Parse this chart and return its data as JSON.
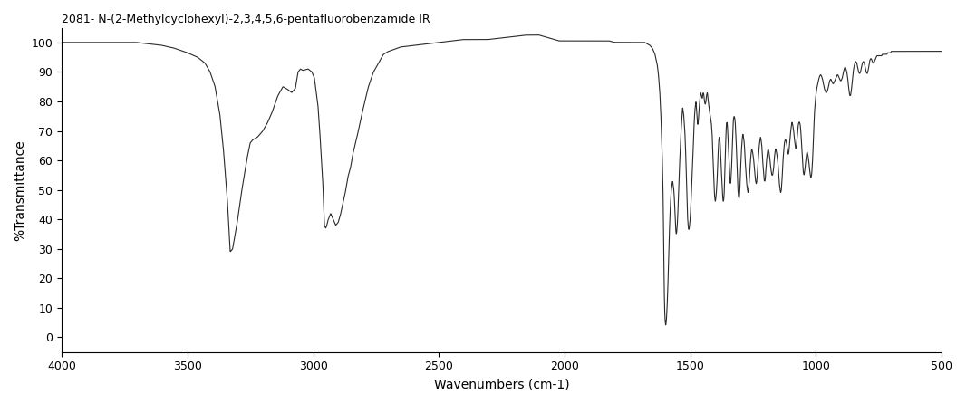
{
  "title": "2081- N-(2-Methylcyclohexyl)-2,3,4,5,6-pentafluorobenzamide IR",
  "xlabel": "Wavenumbers (cm-1)",
  "ylabel": "%Transmittance",
  "xmin": 500,
  "xmax": 4000,
  "ymin": -5,
  "ymax": 105,
  "xticks": [
    4000,
    3500,
    3000,
    2500,
    2000,
    1500,
    1000,
    500
  ],
  "yticks": [
    0,
    10,
    20,
    30,
    40,
    50,
    60,
    70,
    80,
    90,
    100
  ],
  "line_color": "#2a2a2a",
  "background_color": "#ffffff",
  "control_points": [
    [
      4000,
      100.0
    ],
    [
      3900,
      100.0
    ],
    [
      3800,
      100.0
    ],
    [
      3700,
      100.0
    ],
    [
      3650,
      99.5
    ],
    [
      3600,
      99.0
    ],
    [
      3550,
      98.0
    ],
    [
      3500,
      96.5
    ],
    [
      3460,
      95.0
    ],
    [
      3430,
      93.0
    ],
    [
      3410,
      90.0
    ],
    [
      3390,
      85.0
    ],
    [
      3370,
      75.0
    ],
    [
      3355,
      62.0
    ],
    [
      3340,
      45.0
    ],
    [
      3330,
      29.0
    ],
    [
      3320,
      30.0
    ],
    [
      3310,
      35.0
    ],
    [
      3300,
      40.0
    ],
    [
      3290,
      46.0
    ],
    [
      3280,
      52.0
    ],
    [
      3270,
      57.0
    ],
    [
      3260,
      62.0
    ],
    [
      3250,
      66.0
    ],
    [
      3240,
      67.0
    ],
    [
      3220,
      68.0
    ],
    [
      3200,
      70.0
    ],
    [
      3180,
      73.0
    ],
    [
      3160,
      77.0
    ],
    [
      3140,
      82.0
    ],
    [
      3120,
      85.0
    ],
    [
      3100,
      84.0
    ],
    [
      3085,
      83.0
    ],
    [
      3070,
      84.5
    ],
    [
      3060,
      90.0
    ],
    [
      3050,
      91.0
    ],
    [
      3040,
      90.5
    ],
    [
      3020,
      91.0
    ],
    [
      3005,
      90.0
    ],
    [
      2995,
      88.0
    ],
    [
      2980,
      78.0
    ],
    [
      2970,
      65.0
    ],
    [
      2960,
      50.0
    ],
    [
      2955,
      38.0
    ],
    [
      2950,
      37.0
    ],
    [
      2945,
      38.0
    ],
    [
      2940,
      40.0
    ],
    [
      2930,
      42.0
    ],
    [
      2920,
      40.0
    ],
    [
      2910,
      38.0
    ],
    [
      2900,
      39.0
    ],
    [
      2890,
      42.0
    ],
    [
      2880,
      46.0
    ],
    [
      2870,
      50.0
    ],
    [
      2860,
      55.0
    ],
    [
      2850,
      58.0
    ],
    [
      2840,
      63.0
    ],
    [
      2820,
      70.0
    ],
    [
      2800,
      78.0
    ],
    [
      2780,
      85.0
    ],
    [
      2760,
      90.0
    ],
    [
      2740,
      93.0
    ],
    [
      2720,
      96.0
    ],
    [
      2700,
      97.0
    ],
    [
      2650,
      98.5
    ],
    [
      2600,
      99.0
    ],
    [
      2550,
      99.5
    ],
    [
      2500,
      100.0
    ],
    [
      2450,
      100.5
    ],
    [
      2400,
      101.0
    ],
    [
      2350,
      101.0
    ],
    [
      2300,
      101.0
    ],
    [
      2250,
      101.5
    ],
    [
      2200,
      102.0
    ],
    [
      2150,
      102.5
    ],
    [
      2100,
      102.5
    ],
    [
      2080,
      102.0
    ],
    [
      2060,
      101.5
    ],
    [
      2040,
      101.0
    ],
    [
      2020,
      100.5
    ],
    [
      2000,
      100.5
    ],
    [
      1980,
      100.5
    ],
    [
      1960,
      100.5
    ],
    [
      1940,
      100.5
    ],
    [
      1920,
      100.5
    ],
    [
      1900,
      100.5
    ],
    [
      1880,
      100.5
    ],
    [
      1860,
      100.5
    ],
    [
      1840,
      100.5
    ],
    [
      1820,
      100.5
    ],
    [
      1800,
      100.0
    ],
    [
      1780,
      100.0
    ],
    [
      1760,
      100.0
    ],
    [
      1740,
      100.0
    ],
    [
      1720,
      100.0
    ],
    [
      1700,
      100.0
    ],
    [
      1690,
      100.0
    ],
    [
      1680,
      100.0
    ],
    [
      1670,
      99.5
    ],
    [
      1660,
      99.0
    ],
    [
      1650,
      98.0
    ],
    [
      1640,
      96.0
    ],
    [
      1635,
      94.0
    ],
    [
      1630,
      92.0
    ],
    [
      1625,
      88.0
    ],
    [
      1620,
      82.0
    ],
    [
      1615,
      72.0
    ],
    [
      1610,
      58.0
    ],
    [
      1607,
      45.0
    ],
    [
      1605,
      30.0
    ],
    [
      1603,
      15.0
    ],
    [
      1601,
      8.0
    ],
    [
      1599,
      5.0
    ],
    [
      1597,
      4.0
    ],
    [
      1595,
      5.5
    ],
    [
      1593,
      8.0
    ],
    [
      1590,
      14.0
    ],
    [
      1587,
      22.0
    ],
    [
      1584,
      32.0
    ],
    [
      1581,
      40.0
    ],
    [
      1578,
      46.0
    ],
    [
      1575,
      50.0
    ],
    [
      1572,
      52.0
    ],
    [
      1570,
      53.0
    ],
    [
      1568,
      52.0
    ],
    [
      1565,
      50.0
    ],
    [
      1562,
      46.0
    ],
    [
      1559,
      40.0
    ],
    [
      1557,
      36.0
    ],
    [
      1555,
      35.0
    ],
    [
      1553,
      36.0
    ],
    [
      1550,
      40.0
    ],
    [
      1545,
      52.0
    ],
    [
      1540,
      63.0
    ],
    [
      1535,
      72.0
    ],
    [
      1530,
      78.0
    ],
    [
      1525,
      75.0
    ],
    [
      1520,
      68.0
    ],
    [
      1515,
      55.0
    ],
    [
      1510,
      40.0
    ],
    [
      1507,
      37.0
    ],
    [
      1505,
      36.5
    ],
    [
      1503,
      37.5
    ],
    [
      1500,
      40.0
    ],
    [
      1497,
      45.0
    ],
    [
      1494,
      52.0
    ],
    [
      1492,
      56.0
    ],
    [
      1490,
      60.0
    ],
    [
      1488,
      64.0
    ],
    [
      1486,
      68.0
    ],
    [
      1484,
      73.0
    ],
    [
      1482,
      76.0
    ],
    [
      1480,
      78.0
    ],
    [
      1477,
      80.0
    ],
    [
      1475,
      78.0
    ],
    [
      1472,
      74.0
    ],
    [
      1470,
      72.0
    ],
    [
      1468,
      73.0
    ],
    [
      1466,
      75.0
    ],
    [
      1464,
      78.0
    ],
    [
      1462,
      80.0
    ],
    [
      1460,
      82.0
    ],
    [
      1458,
      83.0
    ],
    [
      1455,
      82.0
    ],
    [
      1452,
      81.0
    ],
    [
      1450,
      82.0
    ],
    [
      1448,
      83.0
    ],
    [
      1445,
      82.0
    ],
    [
      1443,
      80.0
    ],
    [
      1440,
      79.0
    ],
    [
      1437,
      80.0
    ],
    [
      1435,
      82.0
    ],
    [
      1432,
      83.0
    ],
    [
      1430,
      82.0
    ],
    [
      1428,
      80.0
    ],
    [
      1425,
      78.0
    ],
    [
      1422,
      76.0
    ],
    [
      1420,
      75.0
    ],
    [
      1418,
      74.0
    ],
    [
      1415,
      72.0
    ],
    [
      1412,
      68.0
    ],
    [
      1410,
      63.0
    ],
    [
      1408,
      57.0
    ],
    [
      1405,
      52.0
    ],
    [
      1403,
      48.0
    ],
    [
      1400,
      46.0
    ],
    [
      1398,
      47.0
    ],
    [
      1395,
      50.0
    ],
    [
      1392,
      55.0
    ],
    [
      1390,
      60.0
    ],
    [
      1388,
      64.0
    ],
    [
      1386,
      67.0
    ],
    [
      1384,
      68.0
    ],
    [
      1382,
      67.0
    ],
    [
      1380,
      65.0
    ],
    [
      1378,
      61.0
    ],
    [
      1375,
      55.0
    ],
    [
      1372,
      50.0
    ],
    [
      1370,
      47.0
    ],
    [
      1368,
      46.0
    ],
    [
      1366,
      47.0
    ],
    [
      1364,
      50.0
    ],
    [
      1362,
      55.0
    ],
    [
      1360,
      62.0
    ],
    [
      1358,
      68.0
    ],
    [
      1356,
      72.0
    ],
    [
      1354,
      73.0
    ],
    [
      1352,
      72.0
    ],
    [
      1350,
      69.0
    ],
    [
      1347,
      64.0
    ],
    [
      1344,
      58.0
    ],
    [
      1342,
      54.0
    ],
    [
      1340,
      52.0
    ],
    [
      1338,
      53.0
    ],
    [
      1335,
      58.0
    ],
    [
      1332,
      65.0
    ],
    [
      1330,
      70.0
    ],
    [
      1328,
      74.0
    ],
    [
      1325,
      75.0
    ],
    [
      1322,
      74.0
    ],
    [
      1320,
      72.0
    ],
    [
      1318,
      68.0
    ],
    [
      1315,
      62.0
    ],
    [
      1312,
      55.0
    ],
    [
      1310,
      50.0
    ],
    [
      1308,
      48.0
    ],
    [
      1305,
      47.0
    ],
    [
      1303,
      49.0
    ],
    [
      1300,
      55.0
    ],
    [
      1298,
      60.0
    ],
    [
      1295,
      65.0
    ],
    [
      1292,
      68.0
    ],
    [
      1290,
      69.0
    ],
    [
      1288,
      68.0
    ],
    [
      1285,
      66.0
    ],
    [
      1282,
      62.0
    ],
    [
      1280,
      58.0
    ],
    [
      1277,
      55.0
    ],
    [
      1275,
      52.0
    ],
    [
      1272,
      50.0
    ],
    [
      1270,
      49.0
    ],
    [
      1268,
      50.0
    ],
    [
      1265,
      53.0
    ],
    [
      1262,
      57.0
    ],
    [
      1260,
      60.0
    ],
    [
      1258,
      62.0
    ],
    [
      1255,
      64.0
    ],
    [
      1252,
      63.0
    ],
    [
      1250,
      62.0
    ],
    [
      1247,
      60.0
    ],
    [
      1244,
      57.0
    ],
    [
      1242,
      55.0
    ],
    [
      1240,
      53.0
    ],
    [
      1237,
      52.0
    ],
    [
      1235,
      53.0
    ],
    [
      1232,
      56.0
    ],
    [
      1230,
      59.0
    ],
    [
      1228,
      62.0
    ],
    [
      1225,
      65.0
    ],
    [
      1222,
      67.0
    ],
    [
      1220,
      68.0
    ],
    [
      1218,
      67.0
    ],
    [
      1215,
      65.0
    ],
    [
      1212,
      61.0
    ],
    [
      1210,
      58.0
    ],
    [
      1207,
      55.0
    ],
    [
      1205,
      53.0
    ],
    [
      1202,
      53.0
    ],
    [
      1200,
      55.0
    ],
    [
      1198,
      58.0
    ],
    [
      1195,
      61.0
    ],
    [
      1192,
      63.0
    ],
    [
      1190,
      64.0
    ],
    [
      1187,
      63.0
    ],
    [
      1185,
      62.0
    ],
    [
      1182,
      60.0
    ],
    [
      1180,
      58.0
    ],
    [
      1177,
      56.0
    ],
    [
      1175,
      55.0
    ],
    [
      1172,
      55.0
    ],
    [
      1170,
      56.0
    ],
    [
      1167,
      58.0
    ],
    [
      1165,
      61.0
    ],
    [
      1162,
      63.0
    ],
    [
      1160,
      64.0
    ],
    [
      1157,
      63.0
    ],
    [
      1155,
      62.0
    ],
    [
      1152,
      60.0
    ],
    [
      1150,
      58.0
    ],
    [
      1147,
      55.0
    ],
    [
      1145,
      52.0
    ],
    [
      1142,
      50.0
    ],
    [
      1140,
      49.0
    ],
    [
      1137,
      50.0
    ],
    [
      1135,
      53.0
    ],
    [
      1132,
      57.0
    ],
    [
      1130,
      61.0
    ],
    [
      1127,
      64.0
    ],
    [
      1125,
      66.0
    ],
    [
      1122,
      67.0
    ],
    [
      1120,
      67.0
    ],
    [
      1117,
      66.0
    ],
    [
      1115,
      65.0
    ],
    [
      1112,
      63.0
    ],
    [
      1110,
      62.0
    ],
    [
      1107,
      63.0
    ],
    [
      1105,
      65.0
    ],
    [
      1102,
      68.0
    ],
    [
      1100,
      70.0
    ],
    [
      1097,
      72.0
    ],
    [
      1095,
      73.0
    ],
    [
      1092,
      72.0
    ],
    [
      1090,
      71.0
    ],
    [
      1087,
      69.0
    ],
    [
      1085,
      67.0
    ],
    [
      1082,
      65.0
    ],
    [
      1080,
      64.0
    ],
    [
      1077,
      65.0
    ],
    [
      1075,
      67.0
    ],
    [
      1072,
      70.0
    ],
    [
      1070,
      72.0
    ],
    [
      1067,
      73.0
    ],
    [
      1065,
      73.0
    ],
    [
      1062,
      72.0
    ],
    [
      1060,
      70.0
    ],
    [
      1057,
      67.0
    ],
    [
      1055,
      63.0
    ],
    [
      1052,
      59.0
    ],
    [
      1050,
      56.0
    ],
    [
      1047,
      55.0
    ],
    [
      1045,
      56.0
    ],
    [
      1042,
      58.0
    ],
    [
      1040,
      60.0
    ],
    [
      1037,
      62.0
    ],
    [
      1035,
      63.0
    ],
    [
      1032,
      62.0
    ],
    [
      1030,
      61.0
    ],
    [
      1027,
      59.0
    ],
    [
      1025,
      57.0
    ],
    [
      1022,
      55.0
    ],
    [
      1020,
      54.0
    ],
    [
      1017,
      55.0
    ],
    [
      1015,
      57.0
    ],
    [
      1012,
      62.0
    ],
    [
      1010,
      67.0
    ],
    [
      1007,
      73.0
    ],
    [
      1005,
      77.0
    ],
    [
      1002,
      80.0
    ],
    [
      1000,
      82.0
    ],
    [
      997,
      84.0
    ],
    [
      995,
      85.0
    ],
    [
      992,
      86.0
    ],
    [
      990,
      87.0
    ],
    [
      987,
      88.0
    ],
    [
      985,
      88.5
    ],
    [
      982,
      89.0
    ],
    [
      980,
      89.0
    ],
    [
      977,
      88.5
    ],
    [
      975,
      88.0
    ],
    [
      972,
      87.0
    ],
    [
      970,
      86.0
    ],
    [
      967,
      85.0
    ],
    [
      965,
      84.0
    ],
    [
      962,
      83.5
    ],
    [
      960,
      83.0
    ],
    [
      957,
      83.0
    ],
    [
      955,
      83.5
    ],
    [
      952,
      84.0
    ],
    [
      950,
      85.0
    ],
    [
      947,
      86.0
    ],
    [
      945,
      87.0
    ],
    [
      942,
      87.5
    ],
    [
      940,
      87.5
    ],
    [
      937,
      87.0
    ],
    [
      935,
      86.5
    ],
    [
      932,
      86.0
    ],
    [
      930,
      86.0
    ],
    [
      927,
      86.5
    ],
    [
      925,
      87.0
    ],
    [
      922,
      87.5
    ],
    [
      920,
      88.0
    ],
    [
      917,
      88.5
    ],
    [
      915,
      89.0
    ],
    [
      912,
      89.0
    ],
    [
      910,
      88.5
    ],
    [
      907,
      88.0
    ],
    [
      905,
      87.5
    ],
    [
      902,
      87.0
    ],
    [
      900,
      87.0
    ],
    [
      897,
      87.5
    ],
    [
      895,
      88.0
    ],
    [
      892,
      89.0
    ],
    [
      890,
      90.0
    ],
    [
      887,
      91.0
    ],
    [
      885,
      91.5
    ],
    [
      882,
      91.5
    ],
    [
      880,
      91.0
    ],
    [
      877,
      90.0
    ],
    [
      875,
      89.0
    ],
    [
      872,
      87.0
    ],
    [
      870,
      85.0
    ],
    [
      867,
      83.0
    ],
    [
      865,
      82.0
    ],
    [
      862,
      82.0
    ],
    [
      860,
      83.0
    ],
    [
      857,
      85.0
    ],
    [
      855,
      87.0
    ],
    [
      852,
      89.0
    ],
    [
      850,
      91.0
    ],
    [
      847,
      92.0
    ],
    [
      845,
      93.0
    ],
    [
      842,
      93.5
    ],
    [
      840,
      93.5
    ],
    [
      837,
      93.0
    ],
    [
      835,
      92.0
    ],
    [
      832,
      91.0
    ],
    [
      830,
      90.0
    ],
    [
      827,
      89.5
    ],
    [
      825,
      89.5
    ],
    [
      822,
      90.0
    ],
    [
      820,
      91.0
    ],
    [
      817,
      92.0
    ],
    [
      815,
      93.0
    ],
    [
      812,
      93.5
    ],
    [
      810,
      93.5
    ],
    [
      807,
      93.0
    ],
    [
      805,
      92.0
    ],
    [
      802,
      91.0
    ],
    [
      800,
      90.0
    ],
    [
      797,
      89.5
    ],
    [
      795,
      89.5
    ],
    [
      792,
      90.5
    ],
    [
      790,
      91.5
    ],
    [
      787,
      93.0
    ],
    [
      785,
      94.0
    ],
    [
      782,
      94.5
    ],
    [
      780,
      94.5
    ],
    [
      777,
      94.0
    ],
    [
      775,
      93.5
    ],
    [
      772,
      93.0
    ],
    [
      770,
      93.0
    ],
    [
      767,
      93.5
    ],
    [
      765,
      94.0
    ],
    [
      762,
      94.5
    ],
    [
      760,
      95.0
    ],
    [
      757,
      95.5
    ],
    [
      755,
      95.5
    ],
    [
      752,
      95.5
    ],
    [
      750,
      95.5
    ],
    [
      747,
      95.5
    ],
    [
      745,
      95.5
    ],
    [
      742,
      95.5
    ],
    [
      740,
      95.5
    ],
    [
      737,
      95.5
    ],
    [
      735,
      96.0
    ],
    [
      732,
      96.0
    ],
    [
      730,
      96.0
    ],
    [
      727,
      96.0
    ],
    [
      725,
      96.0
    ],
    [
      722,
      96.0
    ],
    [
      720,
      96.0
    ],
    [
      717,
      96.0
    ],
    [
      715,
      96.5
    ],
    [
      712,
      96.5
    ],
    [
      710,
      96.5
    ],
    [
      707,
      96.5
    ],
    [
      705,
      96.5
    ],
    [
      702,
      96.5
    ],
    [
      700,
      97.0
    ],
    [
      697,
      97.0
    ],
    [
      695,
      97.0
    ],
    [
      692,
      97.0
    ],
    [
      690,
      97.0
    ],
    [
      687,
      97.0
    ],
    [
      685,
      97.0
    ],
    [
      682,
      97.0
    ],
    [
      680,
      97.0
    ],
    [
      677,
      97.0
    ],
    [
      675,
      97.0
    ],
    [
      672,
      97.0
    ],
    [
      670,
      97.0
    ],
    [
      667,
      97.0
    ],
    [
      665,
      97.0
    ],
    [
      662,
      97.0
    ],
    [
      660,
      97.0
    ],
    [
      657,
      97.0
    ],
    [
      655,
      97.0
    ],
    [
      652,
      97.0
    ],
    [
      650,
      97.0
    ],
    [
      645,
      97.0
    ],
    [
      640,
      97.0
    ],
    [
      635,
      97.0
    ],
    [
      630,
      97.0
    ],
    [
      625,
      97.0
    ],
    [
      620,
      97.0
    ],
    [
      615,
      97.0
    ],
    [
      610,
      97.0
    ],
    [
      605,
      97.0
    ],
    [
      600,
      97.0
    ],
    [
      595,
      97.0
    ],
    [
      590,
      97.0
    ],
    [
      585,
      97.0
    ],
    [
      580,
      97.0
    ],
    [
      575,
      97.0
    ],
    [
      570,
      97.0
    ],
    [
      565,
      97.0
    ],
    [
      560,
      97.0
    ],
    [
      555,
      97.0
    ],
    [
      550,
      97.0
    ],
    [
      545,
      97.0
    ],
    [
      540,
      97.0
    ],
    [
      535,
      97.0
    ],
    [
      530,
      97.0
    ],
    [
      525,
      97.0
    ],
    [
      520,
      97.0
    ],
    [
      515,
      97.0
    ],
    [
      510,
      97.0
    ],
    [
      505,
      97.0
    ],
    [
      500,
      97.0
    ]
  ]
}
